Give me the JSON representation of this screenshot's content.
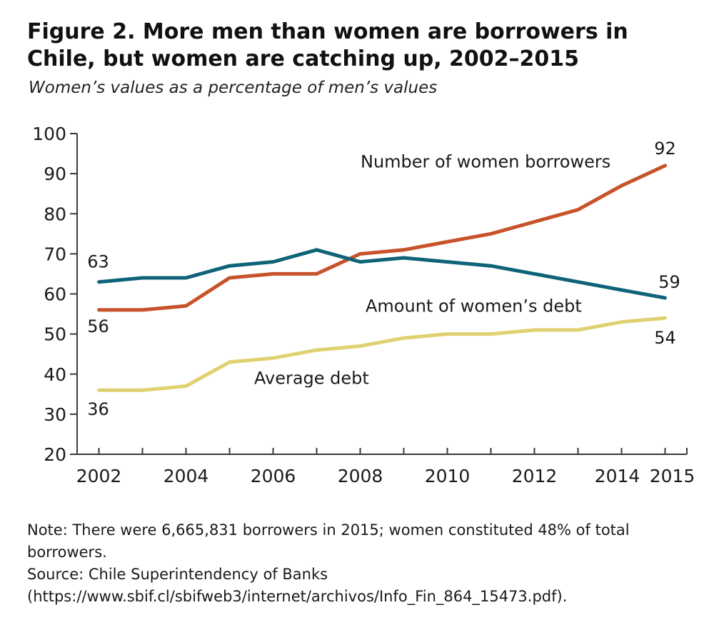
{
  "title": "Figure 2. More men than women are borrowers in Chile, but women are catching up, 2002–2015",
  "subtitle": "Women’s values as a percentage of men’s values",
  "note": "Note: There were 6,665,831 borrowers in 2015; women constituted 48% of total borrowers.",
  "source": "Source: Chile Superintendency of Banks (https://www.sbif.cl/sbifweb3/internet/archivos/Info_Fin_864_15473.pdf).",
  "chart_data": {
    "type": "line",
    "x": [
      2002,
      2003,
      2004,
      2005,
      2006,
      2007,
      2008,
      2009,
      2010,
      2011,
      2012,
      2013,
      2014,
      2015
    ],
    "x_tick_labels": [
      "2002",
      "2004",
      "2006",
      "2008",
      "2010",
      "2012",
      "2014",
      "2015"
    ],
    "x_tick_values": [
      2002,
      2004,
      2006,
      2008,
      2010,
      2012,
      2014,
      2015
    ],
    "y_ticks": [
      20,
      30,
      40,
      50,
      60,
      70,
      80,
      90,
      100
    ],
    "ylim": [
      20,
      100
    ],
    "xlim": [
      2001.5,
      2015.5
    ],
    "grid": false,
    "series": [
      {
        "name": "Number of women borrowers",
        "color": "#c8522a",
        "values": [
          56,
          56,
          57,
          64,
          65,
          65,
          70,
          71,
          73,
          75,
          78,
          81,
          87,
          92
        ],
        "start_label": "56",
        "end_label": "92"
      },
      {
        "name": "Amount of women’s debt",
        "color": "#0e6378",
        "values": [
          63,
          64,
          64,
          67,
          68,
          71,
          68,
          69,
          68,
          67,
          65,
          63,
          61,
          59
        ],
        "start_label": "63",
        "end_label": "59"
      },
      {
        "name": "Average debt",
        "color": "#dfd172",
        "values": [
          36,
          36,
          37,
          43,
          44,
          46,
          47,
          49,
          50,
          50,
          51,
          51,
          53,
          54
        ],
        "start_label": "36",
        "end_label": "54"
      }
    ]
  }
}
